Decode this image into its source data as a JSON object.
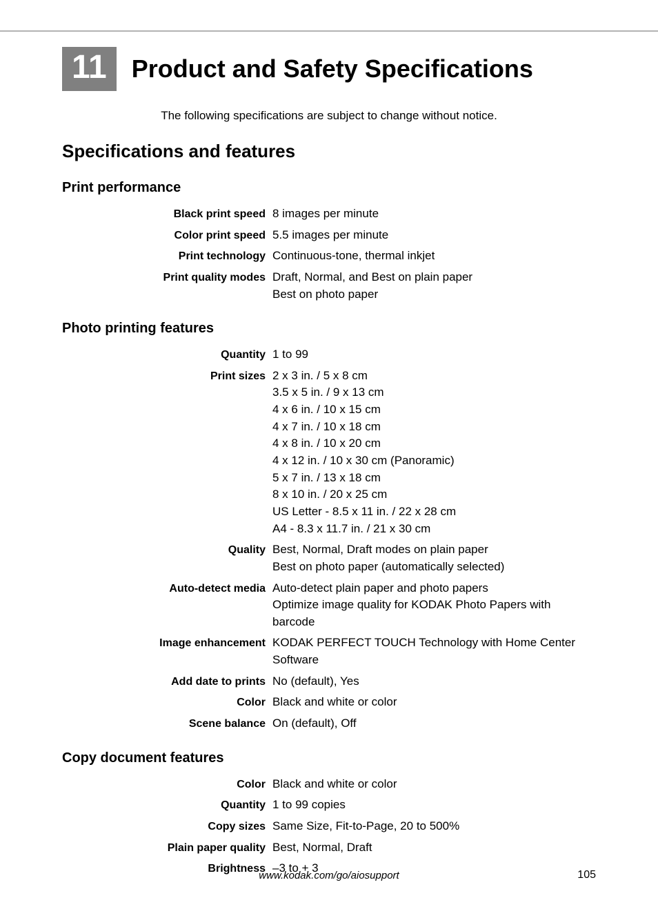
{
  "chapter": {
    "number": "11",
    "title": "Product and Safety Specifications"
  },
  "intro": "The following specifications are subject to change without notice.",
  "h2": "Specifications and features",
  "sections": [
    {
      "heading": "Print performance",
      "rows": [
        {
          "label": "Black print speed",
          "lines": [
            "8 images per minute"
          ]
        },
        {
          "label": "Color print speed",
          "lines": [
            "5.5 images per minute"
          ]
        },
        {
          "label": "Print technology",
          "lines": [
            "Continuous-tone, thermal inkjet"
          ]
        },
        {
          "label": "Print quality modes",
          "lines": [
            "Draft, Normal, and Best on plain paper",
            "Best on photo paper"
          ]
        }
      ]
    },
    {
      "heading": "Photo printing features",
      "rows": [
        {
          "label": "Quantity",
          "lines": [
            "1 to 99"
          ]
        },
        {
          "label": "Print sizes",
          "lines": [
            "2 x 3 in. / 5 x 8 cm",
            "3.5 x 5 in. / 9 x 13 cm",
            "4 x 6 in. / 10 x 15 cm",
            "4 x 7 in. / 10 x 18 cm",
            "4 x 8 in. / 10 x 20 cm",
            "4 x 12 in. / 10 x 30 cm (Panoramic)",
            "5 x 7 in. / 13 x 18 cm",
            "8 x 10 in. / 20 x 25 cm",
            "US Letter - 8.5 x 11 in. / 22 x 28 cm",
            "A4 - 8.3 x 11.7 in. / 21 x 30 cm"
          ]
        },
        {
          "label": "Quality",
          "lines": [
            "Best, Normal, Draft modes on plain paper",
            "Best on photo paper (automatically selected)"
          ]
        },
        {
          "label": "Auto-detect media",
          "lines": [
            "Auto-detect plain paper and photo papers",
            "Optimize image quality for KODAK Photo Papers with barcode"
          ]
        },
        {
          "label": "Image enhancement",
          "lines": [
            "KODAK PERFECT TOUCH Technology with Home Center Software"
          ]
        },
        {
          "label": "Add date to prints",
          "lines": [
            "No (default), Yes"
          ]
        },
        {
          "label": "Color",
          "lines": [
            "Black and white or color"
          ]
        },
        {
          "label": "Scene balance",
          "lines": [
            "On (default), Off"
          ]
        }
      ]
    },
    {
      "heading": "Copy document features",
      "rows": [
        {
          "label": "Color",
          "lines": [
            "Black and white or color"
          ]
        },
        {
          "label": "Quantity",
          "lines": [
            "1 to 99 copies"
          ]
        },
        {
          "label": "Copy sizes",
          "lines": [
            "Same Size, Fit-to-Page, 20 to 500%"
          ]
        },
        {
          "label": "Plain paper quality",
          "lines": [
            "Best, Normal, Draft"
          ]
        },
        {
          "label": "Brightness",
          "lines": [
            "–3 to + 3"
          ]
        }
      ]
    }
  ],
  "footer_url": "www.kodak.com/go/aiosupport",
  "page_number": "105"
}
